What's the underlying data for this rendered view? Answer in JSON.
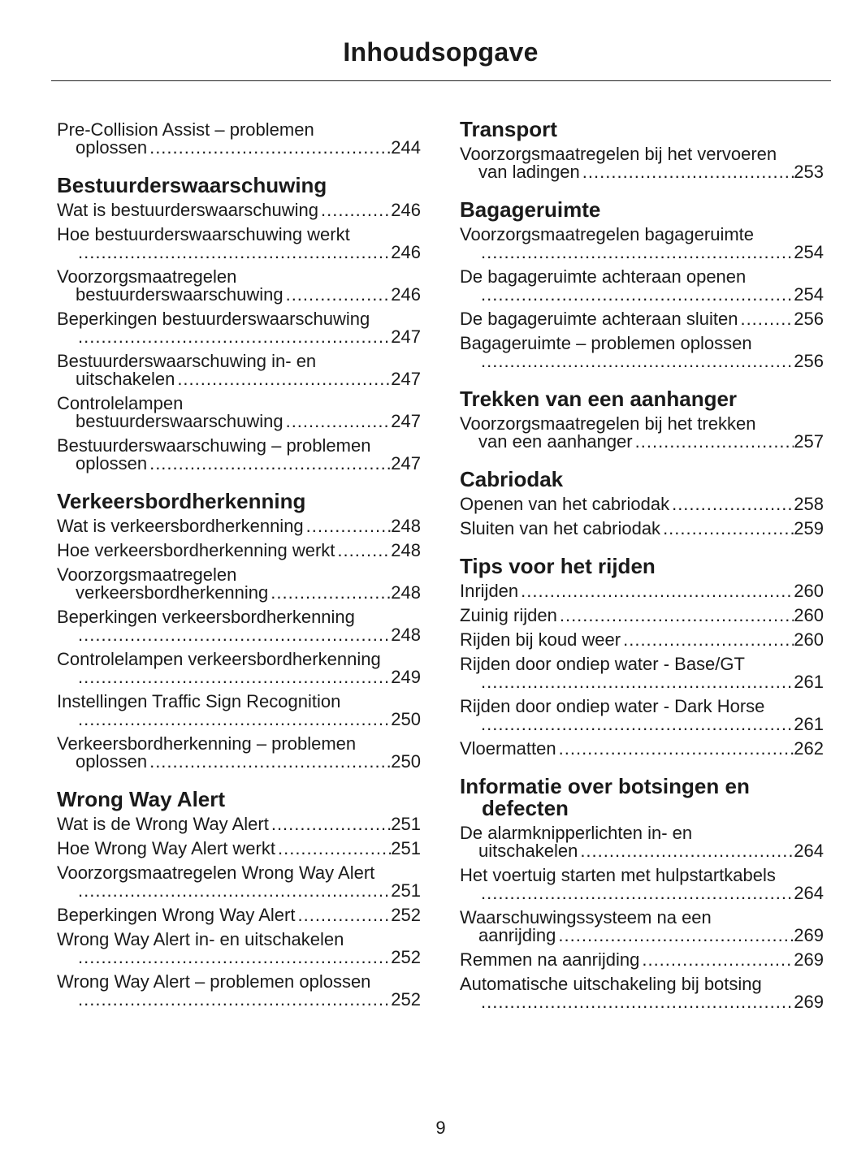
{
  "title": "Inhoudsopgave",
  "page_number": "9",
  "columns": [
    [
      {
        "type": "entry",
        "l1": "Pre-Collision Assist – problemen",
        "l2": "oplossen",
        "page": "244"
      },
      {
        "type": "heading",
        "text": "Bestuurderswaarschuwing"
      },
      {
        "type": "entry",
        "l1": "Wat is bestuurderswaarschuwing",
        "page": "246"
      },
      {
        "type": "entry",
        "l1": "Hoe bestuurderswaarschuwing werkt",
        "l2": "",
        "page": "246"
      },
      {
        "type": "entry",
        "l1": "Voorzorgsmaatregelen",
        "l2": "bestuurderswaarschuwing",
        "page": "246"
      },
      {
        "type": "entry",
        "l1": "Beperkingen bestuurderswaarschuwing",
        "l2": "",
        "page": "247"
      },
      {
        "type": "entry",
        "l1": "Bestuurderswaarschuwing in- en",
        "l2": "uitschakelen",
        "page": "247"
      },
      {
        "type": "entry",
        "l1": "Controlelampen",
        "l2": "bestuurderswaarschuwing",
        "page": "247"
      },
      {
        "type": "entry",
        "l1": "Bestuurderswaarschuwing – problemen",
        "l2": "oplossen",
        "page": "247"
      },
      {
        "type": "heading",
        "text": "Verkeersbordherkenning"
      },
      {
        "type": "entry",
        "l1": "Wat is verkeersbordherkenning",
        "page": "248"
      },
      {
        "type": "entry",
        "l1": "Hoe verkeersbordherkenning werkt",
        "page": "248"
      },
      {
        "type": "entry",
        "l1": "Voorzorgsmaatregelen",
        "l2": "verkeersbordherkenning",
        "page": "248"
      },
      {
        "type": "entry",
        "l1": "Beperkingen verkeersbordherkenning",
        "l2": "",
        "page": "248"
      },
      {
        "type": "entry",
        "l1": "Controlelampen verkeersbordherkenning",
        "l2": "",
        "page": "249"
      },
      {
        "type": "entry",
        "l1": "Instellingen Traffic Sign Recognition",
        "l2": "",
        "page": "250"
      },
      {
        "type": "entry",
        "l1": "Verkeersbordherkenning – problemen",
        "l2": "oplossen",
        "page": "250"
      },
      {
        "type": "heading",
        "text": "Wrong Way Alert"
      },
      {
        "type": "entry",
        "l1": "Wat is de Wrong Way Alert",
        "page": "251"
      },
      {
        "type": "entry",
        "l1": "Hoe Wrong Way Alert werkt",
        "page": "251"
      },
      {
        "type": "entry",
        "l1": "Voorzorgsmaatregelen Wrong Way Alert",
        "l2": "",
        "page": "251"
      },
      {
        "type": "entry",
        "l1": "Beperkingen Wrong Way Alert",
        "page": "252"
      },
      {
        "type": "entry",
        "l1": "Wrong Way Alert in- en uitschakelen",
        "l2": "",
        "page": "252"
      },
      {
        "type": "entry",
        "l1": "Wrong Way Alert – problemen oplossen",
        "l2": "",
        "page": "252"
      }
    ],
    [
      {
        "type": "heading",
        "text": "Transport"
      },
      {
        "type": "entry",
        "l1": "Voorzorgsmaatregelen bij het vervoeren",
        "l2": "van ladingen",
        "page": "253"
      },
      {
        "type": "heading",
        "text": "Bagageruimte"
      },
      {
        "type": "entry",
        "l1": "Voorzorgsmaatregelen bagageruimte",
        "l2": "",
        "page": "254"
      },
      {
        "type": "entry",
        "l1": "De bagageruimte achteraan openen",
        "l2": "",
        "page": "254"
      },
      {
        "type": "entry",
        "l1": "De bagageruimte achteraan sluiten",
        "page": "256"
      },
      {
        "type": "entry",
        "l1": "Bagageruimte – problemen oplossen",
        "l2": "",
        "page": "256"
      },
      {
        "type": "heading",
        "text": "Trekken van een aanhanger"
      },
      {
        "type": "entry",
        "l1": "Voorzorgsmaatregelen bij het trekken",
        "l2": "van een aanhanger",
        "page": "257"
      },
      {
        "type": "heading",
        "text": "Cabriodak"
      },
      {
        "type": "entry",
        "l1": "Openen van het cabriodak",
        "page": "258"
      },
      {
        "type": "entry",
        "l1": "Sluiten van het cabriodak",
        "page": "259"
      },
      {
        "type": "heading",
        "text": "Tips voor het rijden"
      },
      {
        "type": "entry",
        "l1": "Inrijden",
        "page": "260"
      },
      {
        "type": "entry",
        "l1": "Zuinig rijden",
        "page": "260"
      },
      {
        "type": "entry",
        "l1": "Rijden bij koud weer",
        "page": "260"
      },
      {
        "type": "entry",
        "l1": "Rijden door ondiep water - Base/GT",
        "l2": "",
        "page": "261"
      },
      {
        "type": "entry",
        "l1": "Rijden door ondiep water - Dark Horse",
        "l2": "",
        "page": "261"
      },
      {
        "type": "entry",
        "l1": "Vloermatten",
        "page": "262"
      },
      {
        "type": "heading",
        "text": "Informatie over botsingen en",
        "text2": "defecten"
      },
      {
        "type": "entry",
        "l1": "De alarmknipperlichten in- en",
        "l2": "uitschakelen",
        "page": "264"
      },
      {
        "type": "entry",
        "l1": "Het voertuig starten met hulpstartkabels",
        "l2": "",
        "page": "264"
      },
      {
        "type": "entry",
        "l1": "Waarschuwingssysteem na een",
        "l2": "aanrijding",
        "page": "269"
      },
      {
        "type": "entry",
        "l1": "Remmen na aanrijding",
        "page": "269"
      },
      {
        "type": "entry",
        "l1": "Automatische uitschakeling bij botsing",
        "l2": "",
        "page": "269"
      }
    ]
  ]
}
